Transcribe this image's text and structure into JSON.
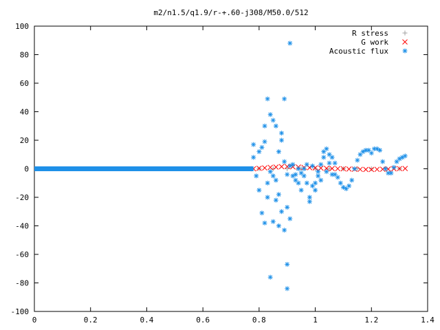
{
  "chart_data": {
    "type": "scatter",
    "title": "m2/n1.5/q1.9/r-+.60-j308/M50.0/512",
    "xlabel": "",
    "ylabel": "",
    "xlim": [
      0,
      1.4
    ],
    "ylim": [
      -100,
      100
    ],
    "x_ticks": [
      0,
      0.2,
      0.4,
      0.6,
      0.8,
      1,
      1.2,
      1.4
    ],
    "x_tick_labels": [
      "0",
      "0.2",
      "0.4",
      "0.6",
      "0.8",
      "1",
      "1.2",
      "1.4"
    ],
    "y_ticks": [
      -100,
      -80,
      -60,
      -40,
      -20,
      0,
      20,
      40,
      60,
      80,
      100
    ],
    "y_tick_labels": [
      "-100",
      "-80",
      "-60",
      "-40",
      "-20",
      "0",
      "20",
      "40",
      "60",
      "80",
      "100"
    ],
    "grid": false,
    "legend_position": "top-right",
    "series": [
      {
        "name": "R stress",
        "marker": "plus",
        "color": "#a0a0a0",
        "x": [
          0.8,
          0.85,
          0.9,
          0.95,
          1.0,
          1.05,
          1.1,
          1.15,
          1.2,
          1.25,
          1.3
        ],
        "y": [
          0,
          0,
          0,
          0,
          0,
          0,
          0,
          0,
          0,
          0,
          0
        ]
      },
      {
        "name": "G work",
        "marker": "cross",
        "color": "#ff0000",
        "x": [
          0.78,
          0.8,
          0.82,
          0.84,
          0.86,
          0.88,
          0.9,
          0.92,
          0.94,
          0.96,
          0.98,
          1.0,
          1.02,
          1.04,
          1.06,
          1.08,
          1.1,
          1.12,
          1.14,
          1.16,
          1.18,
          1.2,
          1.22,
          1.24,
          1.26,
          1.28,
          1.3,
          1.32
        ],
        "y": [
          0,
          0.3,
          0.6,
          1.0,
          1.2,
          1.5,
          1.6,
          1.4,
          1.2,
          1.0,
          0.8,
          0.6,
          0.5,
          0.3,
          0.2,
          0.1,
          0,
          -0.2,
          -0.3,
          -0.4,
          -0.5,
          -0.5,
          -0.4,
          -0.3,
          -0.2,
          0,
          0.1,
          0.2
        ]
      },
      {
        "name": "Acoustic flux",
        "marker": "star",
        "color": "#1e90e8",
        "baseline_x": [
          0,
          0.78
        ],
        "baseline_y": 0,
        "x": [
          0.78,
          0.78,
          0.79,
          0.8,
          0.8,
          0.81,
          0.81,
          0.82,
          0.82,
          0.82,
          0.83,
          0.83,
          0.83,
          0.84,
          0.84,
          0.84,
          0.85,
          0.85,
          0.85,
          0.86,
          0.86,
          0.86,
          0.87,
          0.87,
          0.87,
          0.88,
          0.88,
          0.88,
          0.89,
          0.89,
          0.89,
          0.9,
          0.9,
          0.9,
          0.9,
          0.91,
          0.91,
          0.91,
          0.92,
          0.92,
          0.93,
          0.93,
          0.94,
          0.94,
          0.95,
          0.95,
          0.96,
          0.96,
          0.97,
          0.97,
          0.98,
          0.98,
          0.99,
          0.99,
          1.0,
          1.0,
          1.01,
          1.01,
          1.02,
          1.02,
          1.03,
          1.03,
          1.04,
          1.04,
          1.05,
          1.05,
          1.06,
          1.06,
          1.07,
          1.07,
          1.08,
          1.09,
          1.1,
          1.11,
          1.12,
          1.13,
          1.14,
          1.15,
          1.16,
          1.17,
          1.18,
          1.19,
          1.2,
          1.21,
          1.22,
          1.23,
          1.24,
          1.25,
          1.26,
          1.27,
          1.28,
          1.29,
          1.3,
          1.31,
          1.32
        ],
        "y": [
          17,
          8,
          -5,
          12,
          -15,
          15,
          -31,
          -38,
          19,
          30,
          -10,
          49,
          -20,
          -2,
          -76,
          38,
          -37,
          34,
          -5,
          -8,
          30,
          -22,
          -40,
          -18,
          12,
          25,
          20,
          -30,
          -43,
          5,
          49,
          -27,
          -67,
          -84,
          -4,
          88,
          -35,
          2,
          -5,
          3,
          -8,
          -4,
          -10,
          0,
          -3,
          -15,
          -5,
          0,
          -10,
          3,
          -20,
          -23,
          2,
          -12,
          -15,
          -10,
          -5,
          -2,
          3,
          -8,
          12,
          8,
          14,
          -2,
          4,
          10,
          8,
          -4,
          4,
          -4,
          -6,
          -10,
          -13,
          -14,
          -12,
          -8,
          0,
          6,
          10,
          12,
          13,
          13,
          11,
          14,
          14,
          13,
          5,
          0,
          -3,
          -3,
          1,
          5,
          7,
          8,
          9
        ]
      }
    ]
  }
}
